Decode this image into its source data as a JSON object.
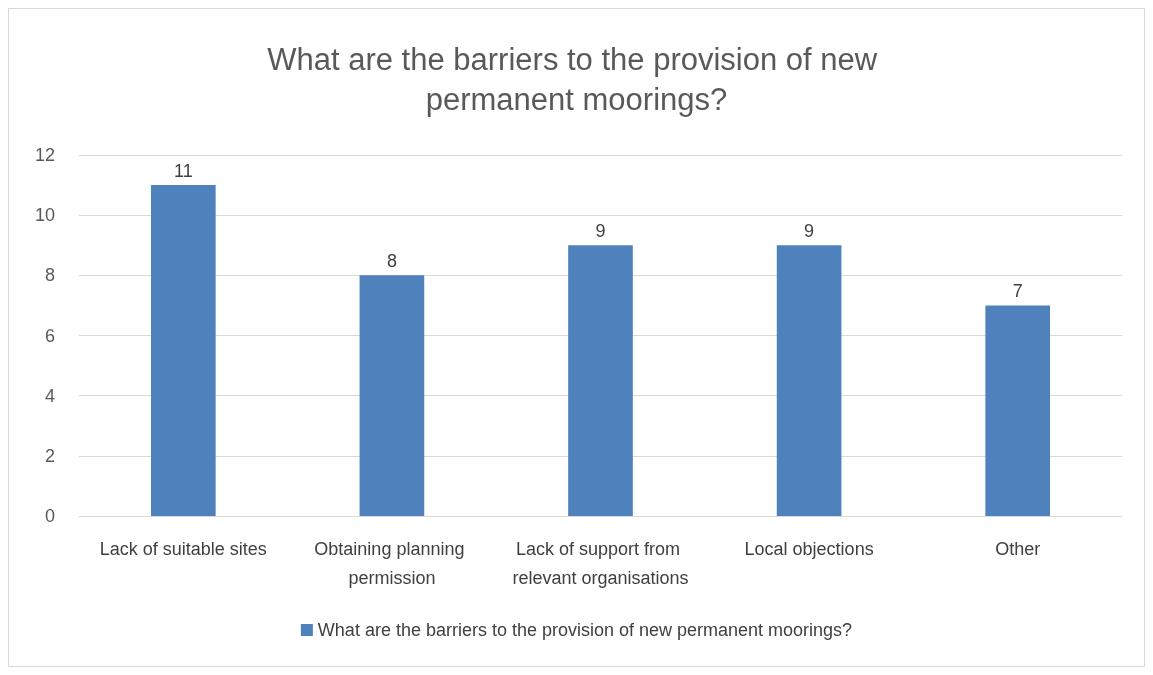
{
  "chart_data": {
    "type": "bar",
    "title": "What are the barriers to the provision of new permanent moorings?",
    "categories": [
      "Lack of suitable sites",
      "Obtaining planning permission",
      "Lack of support from relevant organisations",
      "Local objections",
      "Other"
    ],
    "series": [
      {
        "name": "What are the barriers to the provision of new permanent moorings?",
        "color": "#4f81bd",
        "values": [
          11,
          8,
          9,
          9,
          7
        ]
      }
    ],
    "ylim": [
      0,
      12
    ],
    "yticks": [
      0,
      2,
      4,
      6,
      8,
      10,
      12
    ],
    "grid": "y",
    "legend": "bottom",
    "data_labels": true
  }
}
